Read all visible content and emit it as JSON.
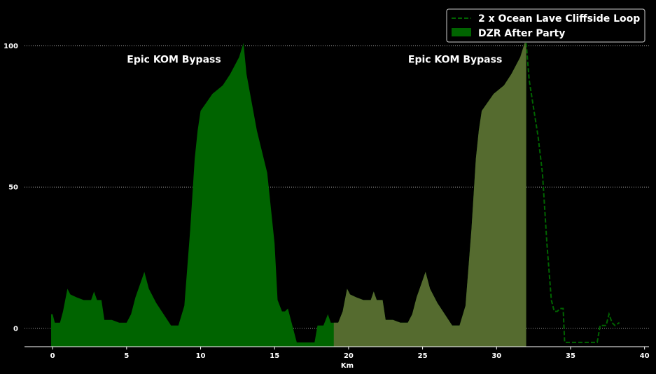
{
  "chart_data": {
    "type": "area",
    "xlabel": "Km",
    "ylabel": "",
    "xlim": [
      -1.9,
      40.3
    ],
    "ylim": [
      -6.5,
      113
    ],
    "x_ticks": [
      0,
      5,
      10,
      15,
      20,
      25,
      30,
      35,
      40
    ],
    "y_ticks": [
      0,
      50,
      100
    ],
    "grid": "horizontal-dotted",
    "legend_position": "top-right",
    "colors": {
      "background": "#000000",
      "loop_line": "#006400",
      "after_party_fill": "#006400",
      "highlight_fill": "#556b2f",
      "grid": "#cccccc",
      "axis": "#ffffff"
    },
    "series": [
      {
        "name": "2 x Ocean Lave Cliffside Loop",
        "style": "dashed-line",
        "x": [
          32.0,
          32.2,
          32.5,
          32.8,
          33.1,
          33.4,
          33.7,
          33.9,
          34.1,
          34.3,
          34.5,
          34.6,
          34.65,
          35.2,
          35.8,
          36.4,
          36.8,
          37.0,
          37.2,
          37.4,
          37.6,
          37.8,
          38.0,
          38.3
        ],
        "y": [
          101,
          88,
          78,
          68,
          55,
          30,
          10,
          6,
          6,
          7,
          7,
          -5,
          -5,
          -5,
          -5,
          -5,
          -5,
          1,
          1,
          1,
          5,
          2,
          1,
          2
        ]
      },
      {
        "name": "DZR After Party",
        "style": "filled-area",
        "x": [
          -0.1,
          0.0,
          0.15,
          0.5,
          0.7,
          1.0,
          1.2,
          1.6,
          2.1,
          2.6,
          2.8,
          3.0,
          3.3,
          3.5,
          4.0,
          4.5,
          5.0,
          5.3,
          5.6,
          6.0,
          6.2,
          6.5,
          7.0,
          7.5,
          8.0,
          8.5,
          8.9,
          9.3,
          9.6,
          9.8,
          10.0,
          10.4,
          10.8,
          11.5,
          12.0,
          12.6,
          12.9,
          13.1,
          13.8,
          14.5,
          15.0,
          15.2,
          15.5,
          15.7,
          15.9,
          16.5,
          17.5,
          17.7,
          17.9,
          18.3,
          18.6,
          18.8,
          19.0,
          19.3,
          19.6,
          19.9,
          20.1,
          20.5,
          21.0,
          21.5,
          21.7,
          21.9,
          22.3,
          22.5,
          23.0,
          23.5,
          24.0,
          24.3,
          24.6,
          25.0,
          25.2,
          25.5,
          26.0,
          26.5,
          27.0,
          27.5,
          27.9,
          28.3,
          28.6,
          28.8,
          29.0,
          29.4,
          29.8,
          30.5,
          31.0,
          31.6,
          31.9,
          32.0
        ],
        "y": [
          5,
          5,
          2,
          2,
          6,
          14,
          12,
          11,
          10,
          10,
          13,
          10,
          10,
          3,
          3,
          2,
          2,
          5,
          11,
          17,
          20,
          14,
          9,
          5,
          1,
          1,
          8,
          35,
          60,
          70,
          77,
          80,
          83,
          86,
          90,
          96,
          101,
          90,
          70,
          55,
          30,
          10,
          6,
          6,
          7,
          -5,
          -5,
          -5,
          1,
          1,
          5,
          2,
          2,
          2,
          6,
          14,
          12,
          11,
          10,
          10,
          13,
          10,
          10,
          3,
          3,
          2,
          2,
          5,
          11,
          17,
          20,
          14,
          9,
          5,
          1,
          1,
          8,
          35,
          60,
          70,
          77,
          80,
          83,
          86,
          90,
          96,
          101,
          101
        ]
      }
    ],
    "highlight_range": [
      19.0,
      32.0
    ],
    "annotations": [
      {
        "text": "Epic KOM Bypass",
        "x": 8.2,
        "y": 94
      },
      {
        "text": "Epic KOM Bypass",
        "x": 27.2,
        "y": 94
      }
    ]
  }
}
